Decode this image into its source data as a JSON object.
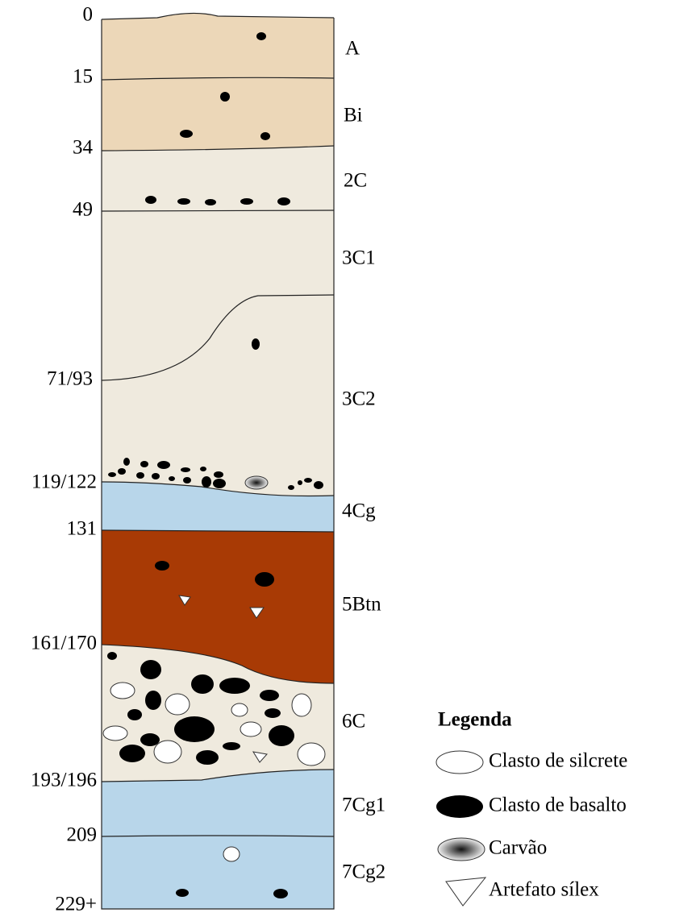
{
  "depths": [
    "0",
    "15",
    "34",
    "49",
    "71/93",
    "119/122",
    "131",
    "161/170",
    "193/196",
    "209",
    "229+"
  ],
  "horizons": [
    "A",
    "Bi",
    "2C",
    "3C1",
    "3C2",
    "4Cg",
    "5Btn",
    "6C",
    "7Cg1",
    "7Cg2"
  ],
  "legend": {
    "title": "Legenda",
    "items": [
      "Clasto de silcrete",
      "Clasto de basalto",
      "Carvão",
      "Artefato sílex"
    ]
  }
}
